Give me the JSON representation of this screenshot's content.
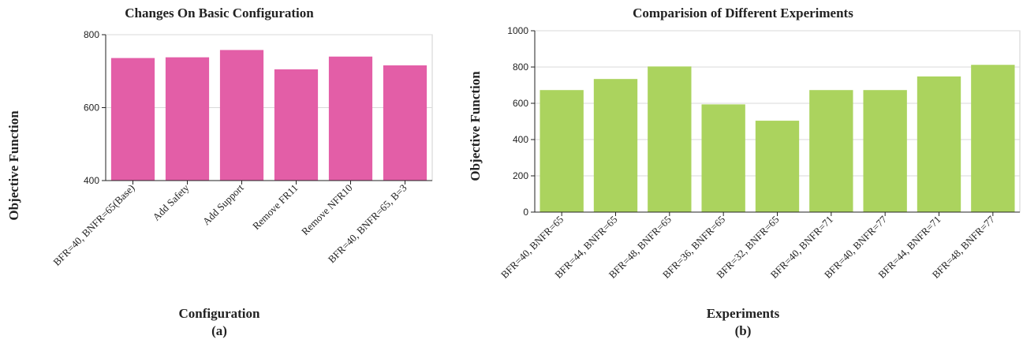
{
  "chart_data": [
    {
      "type": "bar",
      "title": "Changes On Basic Configuration",
      "xlabel": "Configuration",
      "ylabel": "Objective Function",
      "sub_label": "(a)",
      "categories": [
        "BFR=40, BNFR=65(Base)",
        "Add Safety",
        "Add Support",
        "Remove FR11",
        "Remove NFR10",
        "BFR=40, BNFR=65, B=3"
      ],
      "values": [
        736,
        738,
        758,
        705,
        740,
        716
      ],
      "ylim": [
        400,
        800
      ],
      "yticks": [
        400,
        600,
        800
      ],
      "color": "#e35ea7",
      "grid": true
    },
    {
      "type": "bar",
      "title": "Comparision of Different Experiments",
      "xlabel": "Experiments",
      "ylabel": "Objective Function",
      "sub_label": "(b)",
      "categories": [
        "BFR=40, BNFR=65",
        "BFR=44, BNFR=65",
        "BFR=48, BNFR=65",
        "BFR=36, BNFR=65",
        "BFR=32, BNFR=65",
        "BFR=40, BNFR=71",
        "BFR=40, BNFR=77",
        "BFR=44, BNFR=71",
        "BFR=48, BNFR=77"
      ],
      "values": [
        673,
        734,
        803,
        594,
        504,
        673,
        673,
        748,
        812
      ],
      "ylim": [
        0,
        1000
      ],
      "yticks": [
        0,
        200,
        400,
        600,
        800,
        1000
      ],
      "color": "#abd35e",
      "grid": true
    }
  ]
}
